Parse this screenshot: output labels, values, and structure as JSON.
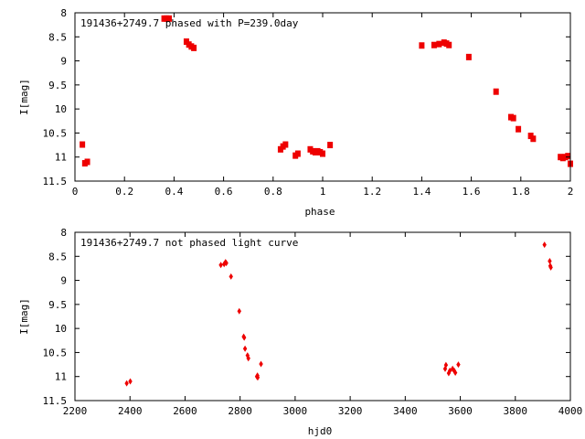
{
  "chart_data": [
    {
      "type": "scatter",
      "title": "191436+2749.7 phased with P=239.0day",
      "xlabel": "phase",
      "ylabel": "I[mag]",
      "xlim": [
        0,
        2
      ],
      "ylim": [
        11.5,
        8
      ],
      "y_inverted": true,
      "x_ticks": [
        "0",
        "0.2",
        "0.4",
        "0.6",
        "0.8",
        "1",
        "1.2",
        "1.4",
        "1.6",
        "1.8",
        "2"
      ],
      "y_ticks": [
        "8",
        "8.5",
        "9",
        "9.5",
        "10",
        "10.5",
        "11",
        "11.5"
      ],
      "grid": false,
      "legend": "none",
      "series": [
        {
          "color": "#ee0000",
          "points": [
            [
              0.03,
              10.74
            ],
            [
              0.04,
              11.13
            ],
            [
              0.05,
              11.1
            ],
            [
              0.36,
              8.12
            ],
            [
              0.37,
              8.12
            ],
            [
              0.38,
              8.12
            ],
            [
              0.45,
              8.6
            ],
            [
              0.46,
              8.66
            ],
            [
              0.47,
              8.7
            ],
            [
              0.48,
              8.73
            ],
            [
              0.83,
              10.84
            ],
            [
              0.84,
              10.78
            ],
            [
              0.85,
              10.74
            ],
            [
              0.89,
              10.97
            ],
            [
              0.9,
              10.93
            ],
            [
              0.95,
              10.84
            ],
            [
              0.96,
              10.88
            ],
            [
              0.97,
              10.9
            ],
            [
              0.98,
              10.88
            ],
            [
              0.99,
              10.9
            ],
            [
              1.0,
              10.93
            ],
            [
              1.03,
              10.75
            ],
            [
              1.4,
              8.68
            ],
            [
              1.45,
              8.67
            ],
            [
              1.47,
              8.65
            ],
            [
              1.49,
              8.62
            ],
            [
              1.5,
              8.64
            ],
            [
              1.51,
              8.67
            ],
            [
              1.59,
              8.92
            ],
            [
              1.7,
              9.64
            ],
            [
              1.76,
              10.17
            ],
            [
              1.77,
              10.19
            ],
            [
              1.79,
              10.42
            ],
            [
              1.84,
              10.56
            ],
            [
              1.85,
              10.62
            ],
            [
              1.96,
              11.0
            ],
            [
              1.97,
              11.02
            ],
            [
              1.98,
              11.0
            ],
            [
              1.99,
              10.98
            ],
            [
              2.0,
              11.14
            ]
          ]
        }
      ]
    },
    {
      "type": "scatter",
      "title": "191436+2749.7 not phased light curve",
      "xlabel": "hjd0",
      "ylabel": "I[mag]",
      "xlim": [
        2200,
        4000
      ],
      "ylim": [
        11.5,
        8
      ],
      "y_inverted": true,
      "x_ticks": [
        "2200",
        "2400",
        "2600",
        "2800",
        "3000",
        "3200",
        "3400",
        "3600",
        "3800",
        "4000"
      ],
      "y_ticks": [
        "8",
        "8.5",
        "9",
        "9.5",
        "10",
        "10.5",
        "11",
        "11.5"
      ],
      "grid": false,
      "legend": "none",
      "series": [
        {
          "color": "#ee0000",
          "points": [
            [
              2388,
              11.14
            ],
            [
              2401,
              11.1
            ],
            [
              2730,
              8.68
            ],
            [
              2742,
              8.66
            ],
            [
              2747,
              8.62
            ],
            [
              2750,
              8.64
            ],
            [
              2767,
              8.92
            ],
            [
              2797,
              9.64
            ],
            [
              2813,
              10.17
            ],
            [
              2815,
              10.19
            ],
            [
              2818,
              10.42
            ],
            [
              2827,
              10.56
            ],
            [
              2830,
              10.62
            ],
            [
              2861,
              11.0
            ],
            [
              2863,
              10.98
            ],
            [
              2864,
              11.02
            ],
            [
              2876,
              10.74
            ],
            [
              3545,
              10.84
            ],
            [
              3548,
              10.76
            ],
            [
              3558,
              10.93
            ],
            [
              3562,
              10.88
            ],
            [
              3572,
              10.84
            ],
            [
              3578,
              10.88
            ],
            [
              3582,
              10.92
            ],
            [
              3593,
              10.75
            ],
            [
              3906,
              8.26
            ],
            [
              3925,
              8.6
            ],
            [
              3927,
              8.7
            ],
            [
              3929,
              8.73
            ]
          ]
        }
      ]
    }
  ]
}
